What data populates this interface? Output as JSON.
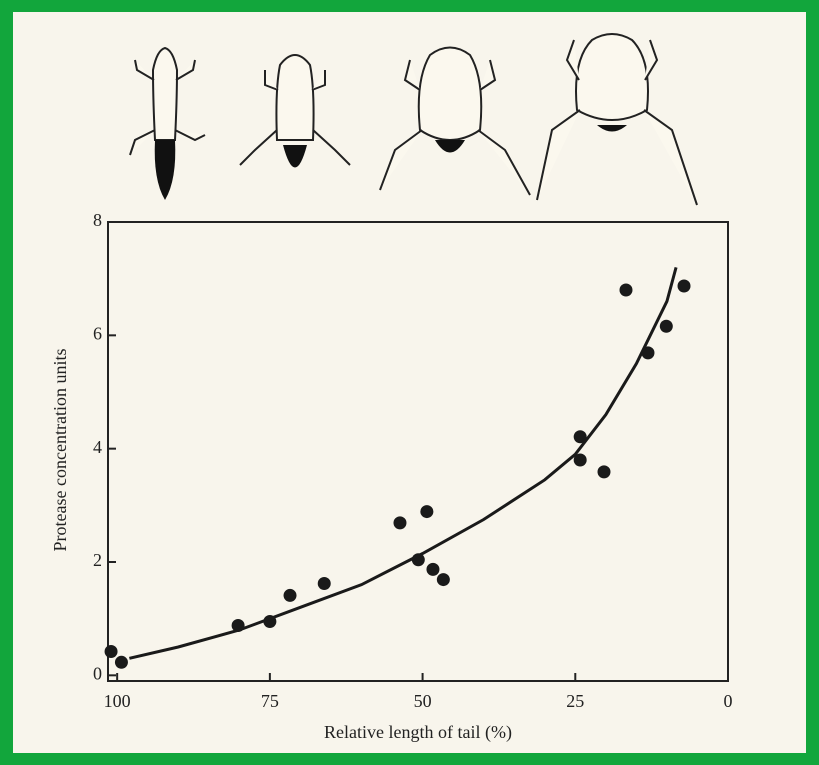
{
  "chart_data": {
    "type": "scatter",
    "x_label": "Relative length of tail (%)",
    "y_label": "Protease concentration units",
    "xlim": [
      101.5,
      0
    ],
    "ylim": [
      -0.1,
      8
    ],
    "xticks": [
      100,
      75,
      50,
      25,
      0
    ],
    "yticks": [
      0,
      2,
      4,
      6,
      8
    ],
    "series": [
      {
        "mode": "markers",
        "color": "#1a1a1a",
        "x": [
          101,
          99.3,
          80.2,
          75,
          71.7,
          66.1,
          53.7,
          49.3,
          50.7,
          48.3,
          46.6,
          24.2,
          24.2,
          20.3,
          16.7,
          13.1,
          10.1,
          7.2
        ],
        "y": [
          0.42,
          0.23,
          0.88,
          0.95,
          1.41,
          1.62,
          2.69,
          2.89,
          2.04,
          1.87,
          1.69,
          4.21,
          3.8,
          3.59,
          6.8,
          5.69,
          6.16,
          6.87
        ]
      },
      {
        "mode": "line",
        "color": "#1a1a1a",
        "x": [
          98,
          90,
          80,
          70,
          60,
          50,
          40,
          30,
          25,
          20,
          15,
          10,
          8.5
        ],
        "y": [
          0.3,
          0.5,
          0.8,
          1.2,
          1.6,
          2.15,
          2.75,
          3.45,
          3.9,
          4.6,
          5.5,
          6.6,
          7.2
        ]
      }
    ]
  }
}
